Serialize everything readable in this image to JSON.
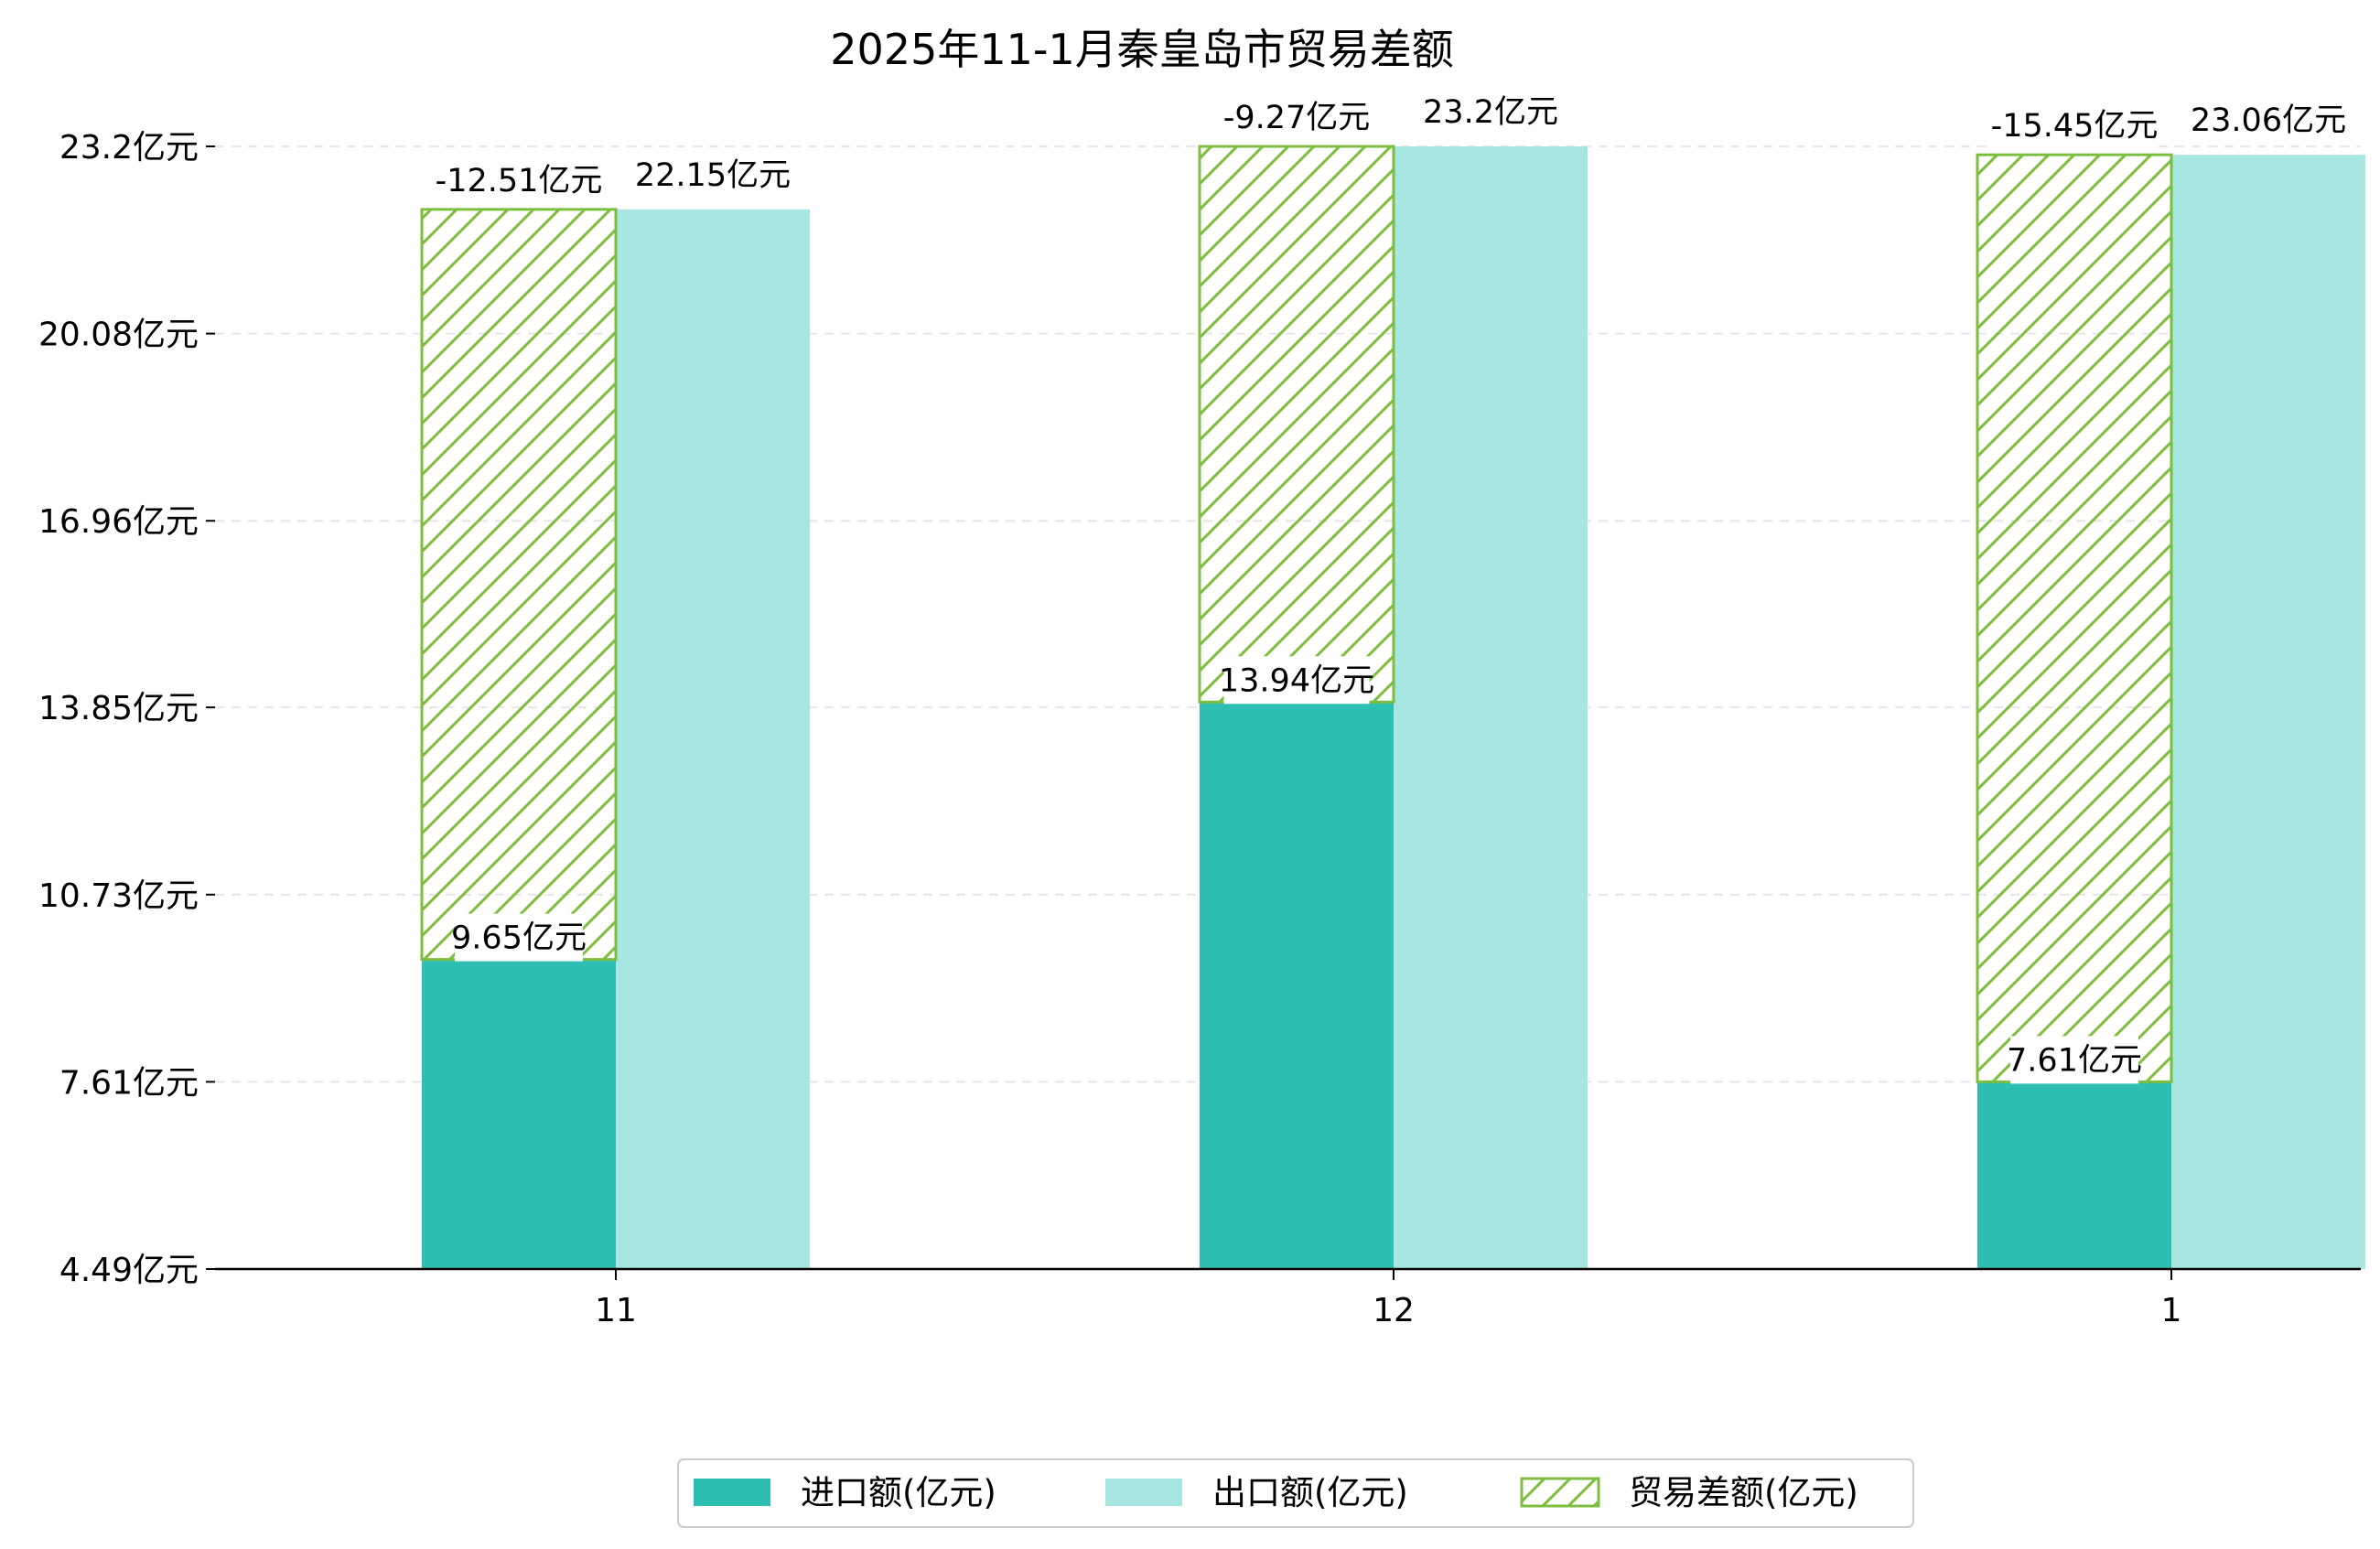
{
  "chart_data": {
    "type": "bar",
    "title": "2025年11-1月秦皇岛市贸易差额",
    "categories": [
      "11",
      "12",
      "1"
    ],
    "series": [
      {
        "name": "进口额(亿元)",
        "values": [
          9.65,
          13.94,
          7.61
        ],
        "color": "#2fbfb2",
        "labels": [
          "9.65亿元",
          "13.94亿元",
          "7.61亿元"
        ]
      },
      {
        "name": "出口额(亿元)",
        "values": [
          22.15,
          23.2,
          23.06
        ],
        "color": "#a8e6e1",
        "labels": [
          "22.15亿元",
          "23.2亿元",
          "23.06亿元"
        ]
      },
      {
        "name": "贸易差额(亿元)",
        "values": [
          -12.51,
          -9.27,
          -15.45
        ],
        "color": "#7cbf3f",
        "labels": [
          "-12.51亿元",
          "-9.27亿元",
          "-15.45亿元"
        ]
      }
    ],
    "yticks": [
      4.49,
      7.61,
      10.73,
      13.85,
      16.96,
      20.08,
      23.2
    ],
    "ytick_labels": [
      "4.49亿元",
      "7.61亿元",
      "10.73亿元",
      "13.85亿元",
      "16.96亿元",
      "20.08亿元",
      "23.2亿元"
    ],
    "ylim": [
      4.49,
      24.6
    ],
    "xlabel": "",
    "ylabel": "",
    "grid": true,
    "legend_position": "bottom-center"
  }
}
